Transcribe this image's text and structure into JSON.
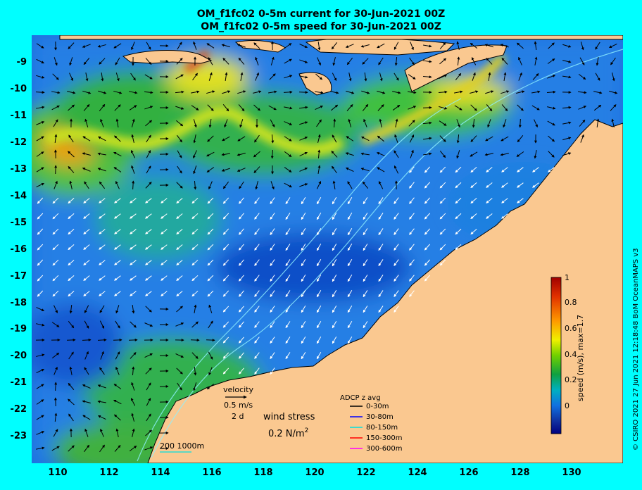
{
  "title": {
    "line1": "OM_f1fc02 0-5m current for 30-Jun-2021 00Z",
    "line2": "OM_f1fc02 0-5m speed for 30-Jun-2021 00Z"
  },
  "axes": {
    "y_labels": [
      "-9",
      "-10",
      "-11",
      "-12",
      "-13",
      "-14",
      "-15",
      "-16",
      "-17",
      "-18",
      "-19",
      "-20",
      "-21",
      "-22",
      "-23"
    ],
    "x_labels": [
      "110",
      "112",
      "114",
      "116",
      "118",
      "120",
      "122",
      "124",
      "126",
      "128",
      "130"
    ],
    "lon_range": [
      109,
      132
    ],
    "lat_range": [
      -23.8,
      -8.5
    ]
  },
  "colorbar": {
    "ticks": [
      "1",
      "0.8",
      "0.6",
      "0.4",
      "0.2",
      "0"
    ],
    "values": [
      1,
      0.8,
      0.6,
      0.4,
      0.2,
      0
    ],
    "label": "speed (m/s), max=1.7",
    "colors": [
      "#a00000",
      "#e03000",
      "#ff9a00",
      "#f0f000",
      "#70d000",
      "#10a040",
      "#00b0c0",
      "#1070e0",
      "#1030a0",
      "#000080"
    ]
  },
  "legend": {
    "velocity_label": "velocity",
    "velocity_speed": "0.5 m/s",
    "velocity_time": "2 d",
    "wind_label": "wind stress",
    "wind_value": "0.2 N/m",
    "wind_sup": "2",
    "scale_label": "200  1000m",
    "adcp_title": "ADCP z avg",
    "adcp_items": [
      {
        "label": "0-30m",
        "color": "#000000"
      },
      {
        "label": "30-80m",
        "color": "#0000ff"
      },
      {
        "label": "80-150m",
        "color": "#00e0e0"
      },
      {
        "label": "150-300m",
        "color": "#ff0000"
      },
      {
        "label": "300-600m",
        "color": "#ff00ff"
      }
    ]
  },
  "credit": "© CSIRO 2021   27 Jun 2021 12:18:48 BoM OceanMAPS v3",
  "colors": {
    "frame": "#00ffff",
    "land": "#fac890",
    "ocean_mid": "#1a6ee0",
    "ocean_fast": "#40c040",
    "current_vector": "#000000",
    "wind_vector": "#ffffff"
  }
}
